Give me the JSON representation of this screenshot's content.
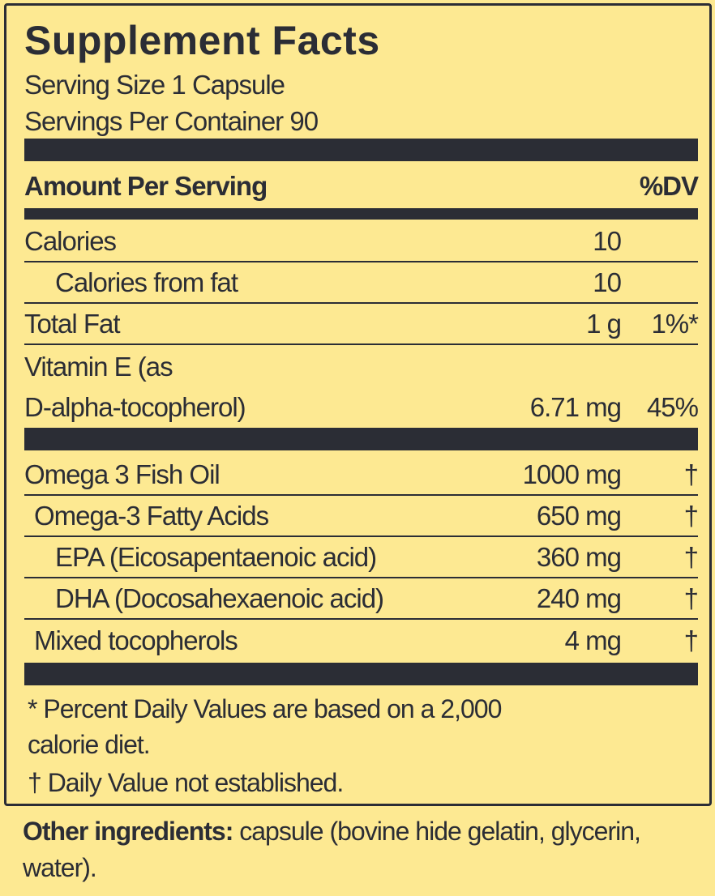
{
  "title": "Supplement Facts",
  "serving_size": "Serving Size 1 Capsule",
  "servings_per_container": "Servings Per Container 90",
  "header": {
    "amount_label": "Amount Per Serving",
    "dv_label": "%DV"
  },
  "rows": [
    {
      "name": "Calories",
      "amount": "10",
      "dv": ""
    },
    {
      "name": "Calories  from  fat",
      "amount": "10",
      "dv": ""
    },
    {
      "name": "Total  Fat",
      "amount": "1  g",
      "dv": "1%*"
    },
    {
      "name": "Vitamin E (as",
      "amount": "",
      "dv": ""
    },
    {
      "name": "D-alpha-tocopherol)",
      "amount": "6.71 mg",
      "dv": "45%"
    },
    {
      "name": "Omega 3 Fish Oil",
      "amount": "1000 mg",
      "dv": "†"
    },
    {
      "name": "Omega-3 Fatty Acids",
      "amount": "650 mg",
      "dv": "†"
    },
    {
      "name": "EPA  (Eicosapentaenoic  acid)",
      "amount": "360  mg",
      "dv": "†"
    },
    {
      "name": "DHA (Docosahexaenoic acid)",
      "amount": "240 mg",
      "dv": "†"
    },
    {
      "name": "Mixed tocopherols",
      "amount": "4 mg",
      "dv": "†"
    }
  ],
  "footnotes": {
    "percent_line1": "* Percent Daily Values are based on a 2,000",
    "percent_line2": "calorie diet.",
    "dagger": "† Daily Value not established."
  },
  "other_ingredients": {
    "label": "Other ingredients:",
    "text": " capsule (bovine hide gelatin, glycerin, water)."
  },
  "colors": {
    "background": "#fde992",
    "ink": "#2b2d35"
  }
}
